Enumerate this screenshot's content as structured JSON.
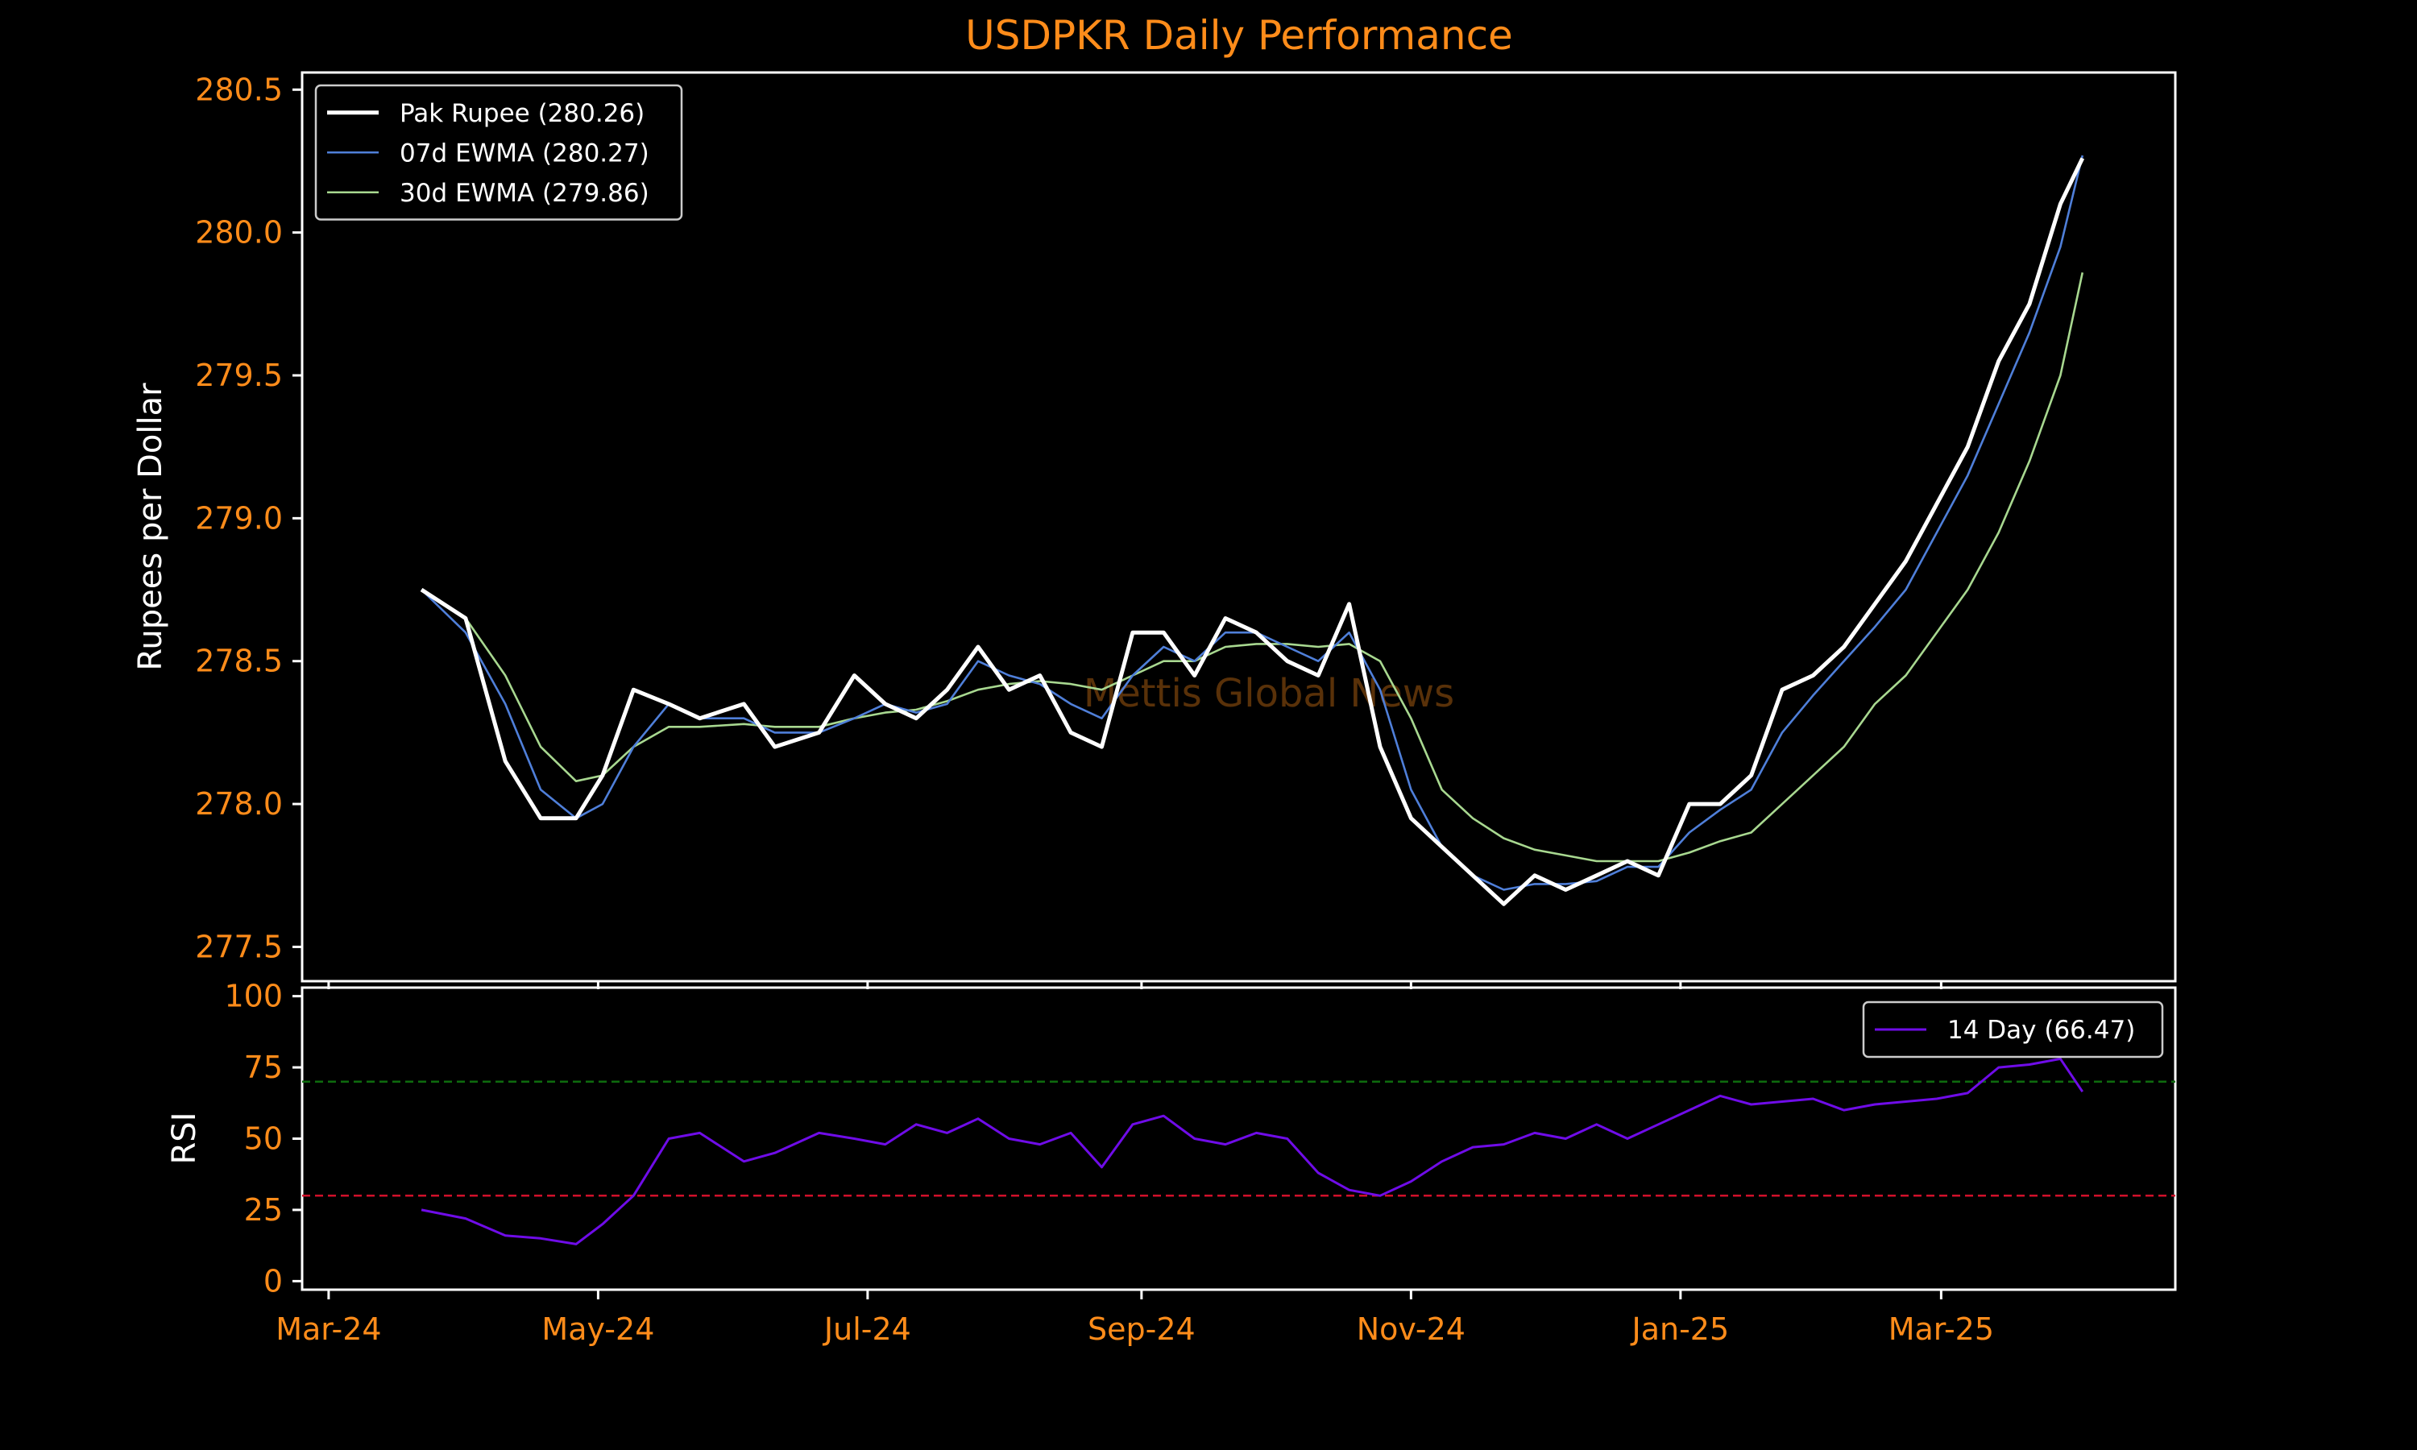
{
  "chart_data": [
    {
      "type": "line",
      "title": "USDPKR Daily Performance",
      "ylabel": "Rupees per Dollar",
      "xlabel": "",
      "ylim": [
        277.38,
        280.56
      ],
      "yticks": [
        277.5,
        278.0,
        278.5,
        279.0,
        279.5,
        280.0,
        280.5
      ],
      "ytick_labels": [
        "277.5",
        "278.0",
        "278.5",
        "279.0",
        "279.5",
        "280.0",
        "280.5"
      ],
      "grid": false,
      "legend_position": "top-left",
      "watermark": "Mettis Global News",
      "x_dates": [
        "2024-03-22",
        "2024-04-01",
        "2024-04-10",
        "2024-04-18",
        "2024-04-26",
        "2024-05-02",
        "2024-05-09",
        "2024-05-17",
        "2024-05-24",
        "2024-06-03",
        "2024-06-10",
        "2024-06-20",
        "2024-06-28",
        "2024-07-05",
        "2024-07-12",
        "2024-07-19",
        "2024-07-26",
        "2024-08-02",
        "2024-08-09",
        "2024-08-16",
        "2024-08-23",
        "2024-08-30",
        "2024-09-06",
        "2024-09-13",
        "2024-09-20",
        "2024-09-27",
        "2024-10-04",
        "2024-10-11",
        "2024-10-18",
        "2024-10-25",
        "2024-11-01",
        "2024-11-08",
        "2024-11-15",
        "2024-11-22",
        "2024-11-29",
        "2024-12-06",
        "2024-12-13",
        "2024-12-20",
        "2024-12-27",
        "2025-01-03",
        "2025-01-10",
        "2025-01-17",
        "2025-01-24",
        "2025-01-31",
        "2025-02-07",
        "2025-02-14",
        "2025-02-21",
        "2025-02-28",
        "2025-03-07",
        "2025-03-14",
        "2025-03-21",
        "2025-03-28",
        "2025-04-02"
      ],
      "series": [
        {
          "name": "Pak Rupee (280.26)",
          "color": "#ffffff",
          "values": [
            278.75,
            278.65,
            278.15,
            277.95,
            277.95,
            278.1,
            278.4,
            278.35,
            278.3,
            278.35,
            278.2,
            278.25,
            278.45,
            278.35,
            278.3,
            278.4,
            278.55,
            278.4,
            278.45,
            278.25,
            278.2,
            278.6,
            278.6,
            278.45,
            278.65,
            278.6,
            278.5,
            278.45,
            278.7,
            278.2,
            277.95,
            277.85,
            277.75,
            277.65,
            277.75,
            277.7,
            277.75,
            277.8,
            277.75,
            278.0,
            278.0,
            278.1,
            278.4,
            278.45,
            278.55,
            278.7,
            278.85,
            279.05,
            279.25,
            279.55,
            279.75,
            280.1,
            280.26
          ]
        },
        {
          "name": "07d EWMA (280.27)",
          "color": "#4f7fd9",
          "values": [
            278.75,
            278.6,
            278.35,
            278.05,
            277.95,
            278.0,
            278.2,
            278.35,
            278.3,
            278.3,
            278.25,
            278.25,
            278.3,
            278.35,
            278.32,
            278.35,
            278.5,
            278.45,
            278.42,
            278.35,
            278.3,
            278.45,
            278.55,
            278.5,
            278.6,
            278.6,
            278.55,
            278.5,
            278.6,
            278.4,
            278.05,
            277.85,
            277.75,
            277.7,
            277.72,
            277.72,
            277.73,
            277.78,
            277.78,
            277.9,
            277.98,
            278.05,
            278.25,
            278.38,
            278.5,
            278.62,
            278.75,
            278.95,
            279.15,
            279.4,
            279.65,
            279.95,
            280.27
          ]
        },
        {
          "name": "30d EWMA (279.86)",
          "color": "#a8d890",
          "values": [
            278.75,
            278.65,
            278.45,
            278.2,
            278.08,
            278.1,
            278.2,
            278.27,
            278.27,
            278.28,
            278.27,
            278.27,
            278.3,
            278.32,
            278.33,
            278.36,
            278.4,
            278.42,
            278.43,
            278.42,
            278.4,
            278.45,
            278.5,
            278.5,
            278.55,
            278.56,
            278.56,
            278.55,
            278.56,
            278.5,
            278.3,
            278.05,
            277.95,
            277.88,
            277.84,
            277.82,
            277.8,
            277.8,
            277.8,
            277.83,
            277.87,
            277.9,
            278.0,
            278.1,
            278.2,
            278.35,
            278.45,
            278.6,
            278.75,
            278.95,
            279.2,
            279.5,
            279.86
          ]
        }
      ]
    },
    {
      "type": "line",
      "ylabel": "RSI",
      "xlabel": "",
      "ylim": [
        -3,
        103
      ],
      "yticks": [
        0,
        25,
        50,
        75,
        100
      ],
      "ytick_labels": [
        "0",
        "25",
        "50",
        "75",
        "100"
      ],
      "xticks": [
        "2024-03-01",
        "2024-05-01",
        "2024-07-01",
        "2024-09-01",
        "2024-11-01",
        "2025-01-01",
        "2025-03-01"
      ],
      "xtick_labels": [
        "Mar-24",
        "May-24",
        "Jul-24",
        "Sep-24",
        "Nov-24",
        "Jan-25",
        "Mar-25"
      ],
      "xlim": [
        "2024-02-24",
        "2025-04-23"
      ],
      "grid": false,
      "legend_position": "top-right",
      "reference_lines": [
        {
          "y": 70,
          "color": "#0e6b0e",
          "style": "dashed"
        },
        {
          "y": 30,
          "color": "#d0102a",
          "style": "dashed"
        }
      ],
      "x_dates": [
        "2024-03-22",
        "2024-04-01",
        "2024-04-10",
        "2024-04-18",
        "2024-04-26",
        "2024-05-02",
        "2024-05-09",
        "2024-05-17",
        "2024-05-24",
        "2024-06-03",
        "2024-06-10",
        "2024-06-20",
        "2024-06-28",
        "2024-07-05",
        "2024-07-12",
        "2024-07-19",
        "2024-07-26",
        "2024-08-02",
        "2024-08-09",
        "2024-08-16",
        "2024-08-23",
        "2024-08-30",
        "2024-09-06",
        "2024-09-13",
        "2024-09-20",
        "2024-09-27",
        "2024-10-04",
        "2024-10-11",
        "2024-10-18",
        "2024-10-25",
        "2024-11-01",
        "2024-11-08",
        "2024-11-15",
        "2024-11-22",
        "2024-11-29",
        "2024-12-06",
        "2024-12-13",
        "2024-12-20",
        "2024-12-27",
        "2025-01-03",
        "2025-01-10",
        "2025-01-17",
        "2025-01-24",
        "2025-01-31",
        "2025-02-07",
        "2025-02-14",
        "2025-02-21",
        "2025-02-28",
        "2025-03-07",
        "2025-03-14",
        "2025-03-21",
        "2025-03-28",
        "2025-04-02"
      ],
      "series": [
        {
          "name": "14 Day (66.47)",
          "color": "#6f0ce8",
          "values": [
            25,
            22,
            16,
            15,
            13,
            20,
            30,
            50,
            52,
            42,
            45,
            52,
            50,
            48,
            55,
            52,
            57,
            50,
            48,
            52,
            40,
            55,
            58,
            50,
            48,
            52,
            50,
            38,
            32,
            30,
            35,
            42,
            47,
            48,
            52,
            50,
            55,
            50,
            55,
            60,
            65,
            62,
            63,
            64,
            60,
            62,
            63,
            64,
            66,
            75,
            76,
            78,
            66.47
          ]
        }
      ]
    }
  ]
}
